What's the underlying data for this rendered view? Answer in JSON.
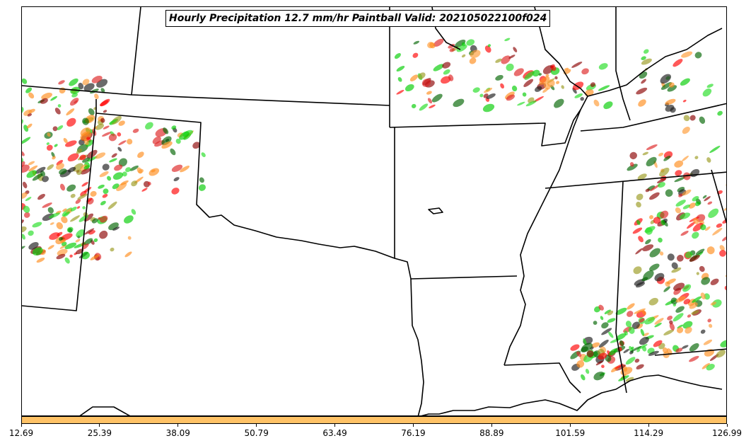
{
  "title": "Hourly Precipitation 12.7 mm/hr Paintball Valid: 202105022100f024",
  "colorbar": {
    "color": "#ffc266",
    "ticks": [
      "12.69",
      "25.39",
      "38.09",
      "50.79",
      "63.49",
      "76.19",
      "88.89",
      "101.59",
      "114.29",
      "126.99"
    ]
  },
  "member_colors": [
    "#ff0000",
    "#00cc00",
    "#ff8c1a",
    "#006400",
    "#8b0000",
    "#9a9a1e",
    "#1a1a1a",
    "#ff9933",
    "#dd2222",
    "#22dd22"
  ]
}
